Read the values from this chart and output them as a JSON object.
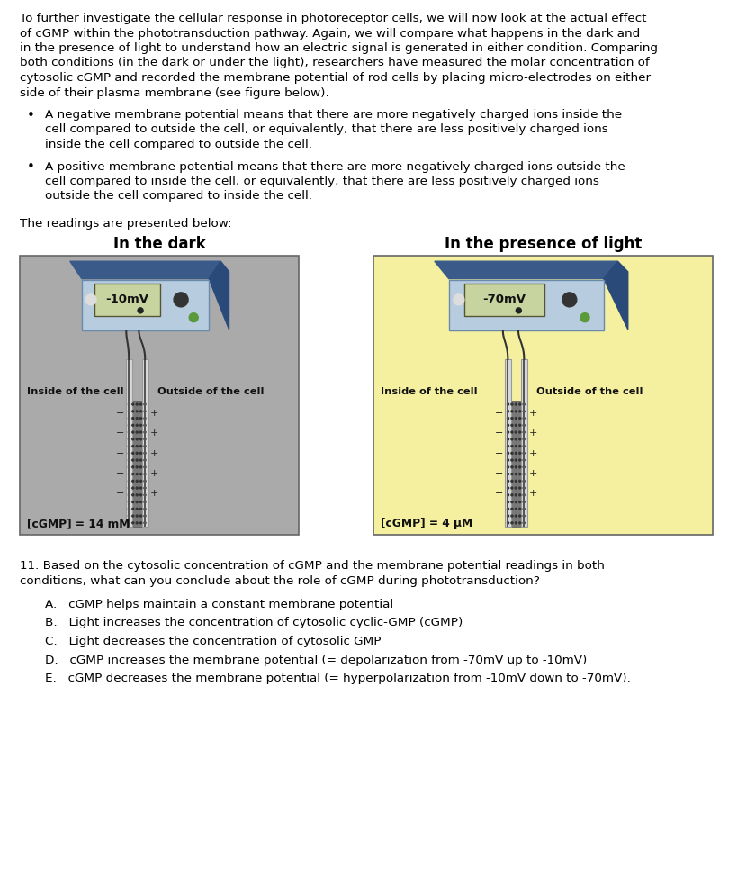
{
  "bg_color": "#ffffff",
  "intro_lines": [
    "To further investigate the cellular response in photoreceptor cells, we will now look at the actual effect",
    "of cGMP within the phototransduction pathway. Again, we will compare what happens in the dark and",
    "in the presence of light to understand how an electric signal is generated in either condition. Comparing",
    "both conditions (in the dark or under the light), researchers have measured the molar concentration of",
    "cytosolic cGMP and recorded the membrane potential of rod cells by placing micro-electrodes on either",
    "side of their plasma membrane (see figure below)."
  ],
  "bullet1_lines": [
    "A negative membrane potential means that there are more negatively charged ions inside the",
    "cell compared to outside the cell, or equivalently, that there are less positively charged ions",
    "inside the cell compared to outside the cell."
  ],
  "bullet2_lines": [
    "A positive membrane potential means that there are more negatively charged ions outside the",
    "cell compared to inside the cell, or equivalently, that there are less positively charged ions",
    "outside the cell compared to inside the cell."
  ],
  "readings_text": "The readings are presented below:",
  "dark_title": "In the dark",
  "light_title": "In the presence of light",
  "dark_bg": "#aaaaaa",
  "light_bg": "#f5f0a0",
  "dark_mv": "-10mV",
  "light_mv": "-70mV",
  "dark_cgmp": "[cGMP] = 14 mM",
  "light_cgmp": "[cGMP] = 4 μM",
  "inside_label": "Inside of the cell",
  "outside_label": "Outside of the cell",
  "q11_text_line1": "11. Based on the cytosolic concentration of cGMP and the membrane potential readings in both",
  "q11_text_line2": "conditions, what can you conclude about the role of cGMP during phototransduction?",
  "options": [
    "A.   cGMP helps maintain a constant membrane potential",
    "B.   Light increases the concentration of cytosolic cyclic-GMP (cGMP)",
    "C.   Light decreases the concentration of cytosolic GMP",
    "D.   cGMP increases the membrane potential (= depolarization from -70mV up to -10mV)",
    "E.   cGMP decreases the membrane potential (= hyperpolarization from -10mV down to -70mV)."
  ],
  "device_body_color": "#4a6a9a",
  "device_front_color": "#b8cce0",
  "screen_color": "#c8d4a0",
  "electrode_color": "#c0c0c0",
  "membrane_color": "#888888"
}
